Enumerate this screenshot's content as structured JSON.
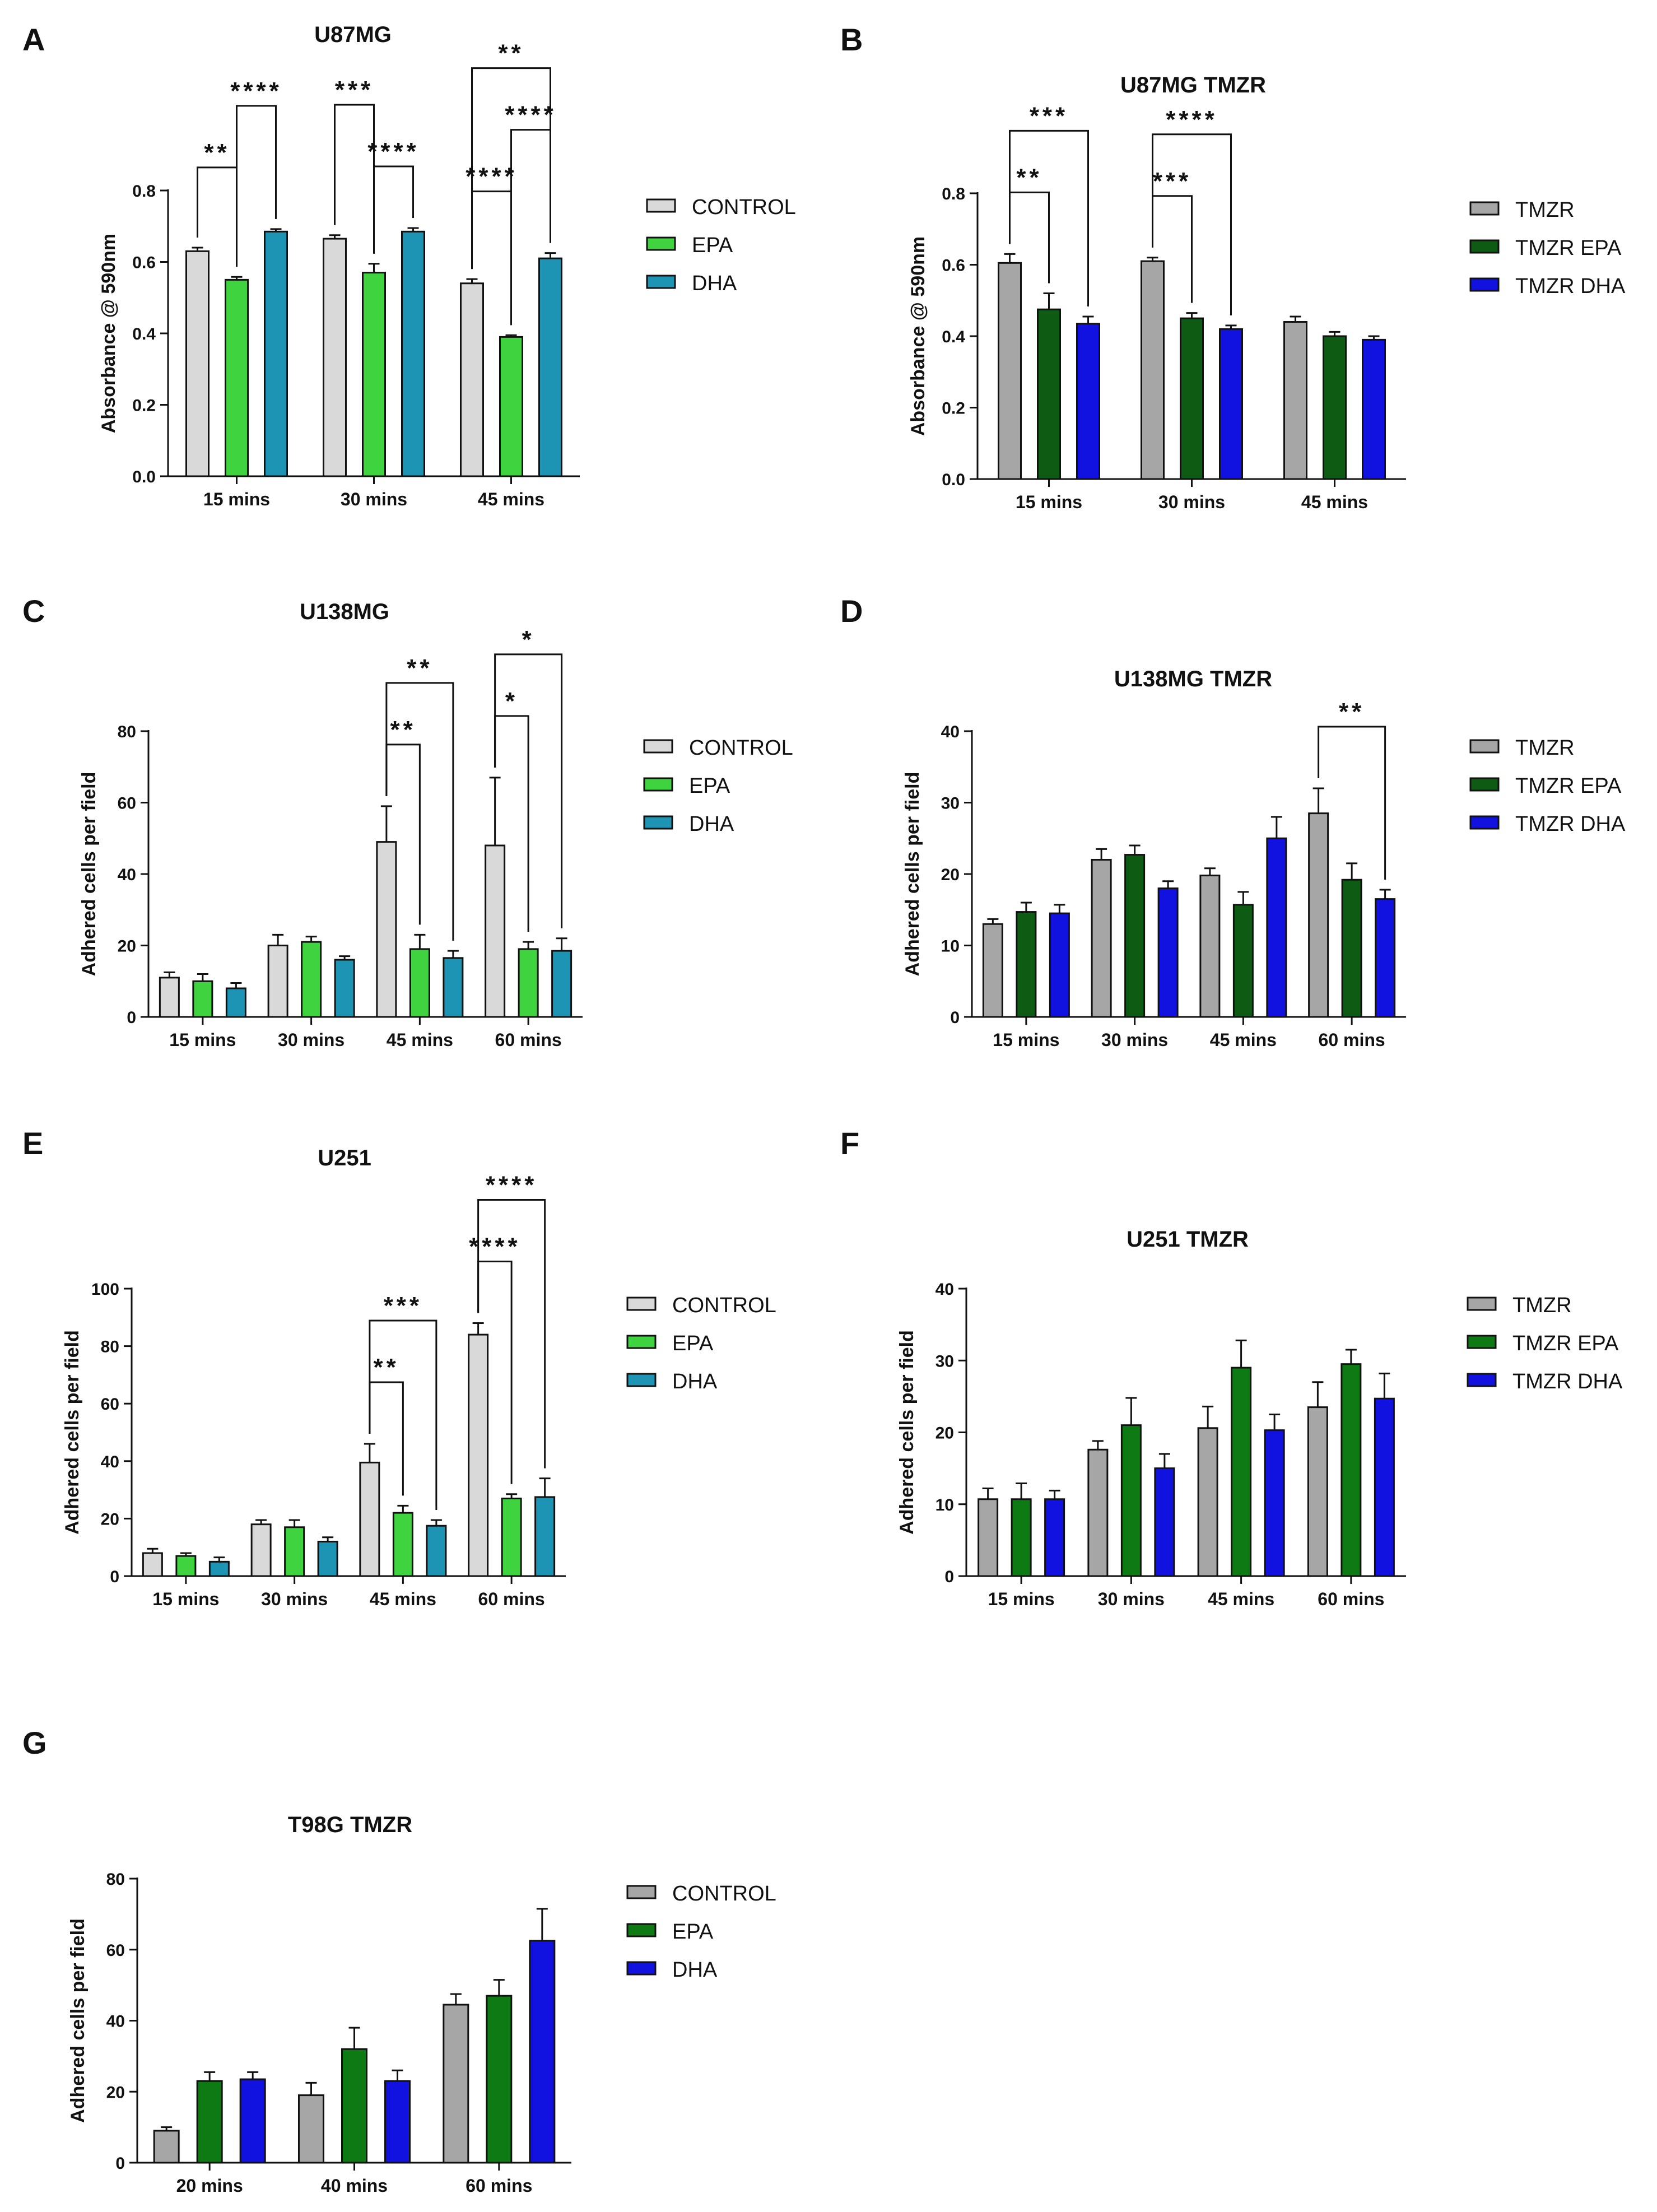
{
  "chart_data": [
    {
      "panel": "A",
      "type": "bar",
      "title": "U87MG",
      "ylabel": "Absorbance @ 590nm",
      "xlabel": "",
      "ylim": [
        0,
        0.8
      ],
      "yticks": [
        0.0,
        0.2,
        0.4,
        0.6,
        0.8
      ],
      "ytick_labels": [
        "0.0",
        "0.2",
        "0.4",
        "0.6",
        "0.8"
      ],
      "categories": [
        "15 mins",
        "30 mins",
        "45 mins"
      ],
      "series": [
        {
          "name": "CONTROL",
          "color": "#d9d9d9",
          "values": [
            0.63,
            0.665,
            0.54
          ],
          "errors": [
            0.01,
            0.01,
            0.012
          ]
        },
        {
          "name": "EPA",
          "color": "#3fd43f",
          "values": [
            0.55,
            0.57,
            0.39
          ],
          "errors": [
            0.008,
            0.025,
            0.005
          ]
        },
        {
          "name": "DHA",
          "color": "#1e94b5",
          "values": [
            0.685,
            0.685,
            0.61
          ],
          "errors": [
            0.007,
            0.01,
            0.015
          ]
        }
      ],
      "significance": [
        {
          "group": 0,
          "from": 0,
          "to": 1,
          "label": "**",
          "level": 0
        },
        {
          "group": 0,
          "from": 1,
          "to": 2,
          "label": "****",
          "level": 1
        },
        {
          "group": 1,
          "from": 0,
          "to": 1,
          "label": "***",
          "level": 1
        },
        {
          "group": 1,
          "from": 1,
          "to": 2,
          "label": "****",
          "level": 0
        },
        {
          "group": 2,
          "from": 0,
          "to": 1,
          "label": "****",
          "level": 0
        },
        {
          "group": 2,
          "from": 1,
          "to": 2,
          "label": "****",
          "level": 1
        },
        {
          "group": 2,
          "from": 0,
          "to": 2,
          "label": "**",
          "level": 2
        }
      ]
    },
    {
      "panel": "B",
      "type": "bar",
      "title": "U87MG TMZR",
      "ylabel": "Absorbance @ 590nm",
      "xlabel": "",
      "ylim": [
        0,
        0.8
      ],
      "yticks": [
        0.0,
        0.2,
        0.4,
        0.6,
        0.8
      ],
      "ytick_labels": [
        "0.0",
        "0.2",
        "0.4",
        "0.6",
        "0.8"
      ],
      "categories": [
        "15 mins",
        "30 mins",
        "45 mins"
      ],
      "series": [
        {
          "name": "TMZR",
          "color": "#a6a6a6",
          "values": [
            0.605,
            0.61,
            0.44
          ],
          "errors": [
            0.025,
            0.01,
            0.015
          ]
        },
        {
          "name": "TMZR EPA",
          "color": "#0e5c13",
          "values": [
            0.475,
            0.45,
            0.4
          ],
          "errors": [
            0.045,
            0.015,
            0.012
          ]
        },
        {
          "name": "TMZR DHA",
          "color": "#1212e0",
          "values": [
            0.435,
            0.42,
            0.39
          ],
          "errors": [
            0.02,
            0.01,
            0.01
          ]
        }
      ],
      "significance": [
        {
          "group": 0,
          "from": 0,
          "to": 1,
          "label": "**",
          "level": 0
        },
        {
          "group": 0,
          "from": 0,
          "to": 2,
          "label": "***",
          "level": 1
        },
        {
          "group": 1,
          "from": 0,
          "to": 1,
          "label": "***",
          "level": 0
        },
        {
          "group": 1,
          "from": 0,
          "to": 2,
          "label": "****",
          "level": 1
        }
      ]
    },
    {
      "panel": "C",
      "type": "bar",
      "title": "U138MG",
      "ylabel": "Adhered cells per field",
      "xlabel": "",
      "ylim": [
        0,
        80
      ],
      "yticks": [
        0,
        20,
        40,
        60,
        80
      ],
      "ytick_labels": [
        "0",
        "20",
        "40",
        "60",
        "80"
      ],
      "categories": [
        "15 mins",
        "30 mins",
        "45 mins",
        "60 mins"
      ],
      "series": [
        {
          "name": "CONTROL",
          "color": "#d9d9d9",
          "values": [
            11,
            20,
            49,
            48
          ],
          "errors": [
            1.5,
            3,
            10,
            19
          ]
        },
        {
          "name": "EPA",
          "color": "#3fd43f",
          "values": [
            10,
            21,
            19,
            19
          ],
          "errors": [
            2,
            1.5,
            4,
            2
          ]
        },
        {
          "name": "DHA",
          "color": "#1e94b5",
          "values": [
            8,
            16,
            16.5,
            18.5
          ],
          "errors": [
            1.5,
            1,
            2,
            3.5
          ]
        }
      ],
      "significance": [
        {
          "group": 2,
          "from": 0,
          "to": 1,
          "label": "**",
          "level": 0
        },
        {
          "group": 2,
          "from": 0,
          "to": 2,
          "label": "**",
          "level": 1
        },
        {
          "group": 3,
          "from": 0,
          "to": 1,
          "label": "*",
          "level": 0
        },
        {
          "group": 3,
          "from": 0,
          "to": 2,
          "label": "*",
          "level": 1
        }
      ]
    },
    {
      "panel": "D",
      "type": "bar",
      "title": "U138MG TMZR",
      "ylabel": "Adhered cells per field",
      "xlabel": "",
      "ylim": [
        0,
        40
      ],
      "yticks": [
        0,
        10,
        20,
        30,
        40
      ],
      "ytick_labels": [
        "0",
        "10",
        "20",
        "30",
        "40"
      ],
      "categories": [
        "15 mins",
        "30 mins",
        "45 mins",
        "60 mins"
      ],
      "series": [
        {
          "name": "TMZR",
          "color": "#a6a6a6",
          "values": [
            13,
            22,
            19.8,
            28.5
          ],
          "errors": [
            0.7,
            1.5,
            1,
            3.5
          ]
        },
        {
          "name": "TMZR EPA",
          "color": "#0e5c13",
          "values": [
            14.7,
            22.7,
            15.7,
            19.2
          ],
          "errors": [
            1.3,
            1.3,
            1.8,
            2.3
          ]
        },
        {
          "name": "TMZR DHA",
          "color": "#1212e0",
          "values": [
            14.5,
            18,
            25,
            16.5
          ],
          "errors": [
            1.2,
            1,
            3,
            1.3
          ]
        }
      ],
      "significance": [
        {
          "group": 3,
          "from": 0,
          "to": 2,
          "label": "**",
          "level": 0
        }
      ]
    },
    {
      "panel": "E",
      "type": "bar",
      "title": "U251",
      "ylabel": "Adhered cells per field",
      "xlabel": "",
      "ylim": [
        0,
        100
      ],
      "yticks": [
        0,
        20,
        40,
        60,
        80,
        100
      ],
      "ytick_labels": [
        "0",
        "20",
        "40",
        "60",
        "80",
        "100"
      ],
      "categories": [
        "15 mins",
        "30 mins",
        "45 mins",
        "60 mins"
      ],
      "series": [
        {
          "name": "CONTROL",
          "color": "#d9d9d9",
          "values": [
            8,
            18,
            39.5,
            84
          ],
          "errors": [
            1.5,
            1.5,
            6.5,
            4
          ]
        },
        {
          "name": "EPA",
          "color": "#3fd43f",
          "values": [
            7,
            17,
            22,
            27
          ],
          "errors": [
            1,
            2.5,
            2.5,
            1.5
          ]
        },
        {
          "name": "DHA",
          "color": "#1e94b5",
          "values": [
            5,
            12,
            17.5,
            27.5
          ],
          "errors": [
            1.5,
            1.5,
            2,
            6.5
          ]
        }
      ],
      "significance": [
        {
          "group": 2,
          "from": 0,
          "to": 1,
          "label": "**",
          "level": 0
        },
        {
          "group": 2,
          "from": 0,
          "to": 2,
          "label": "***",
          "level": 1
        },
        {
          "group": 3,
          "from": 0,
          "to": 1,
          "label": "****",
          "level": 0
        },
        {
          "group": 3,
          "from": 0,
          "to": 2,
          "label": "****",
          "level": 1
        }
      ]
    },
    {
      "panel": "F",
      "type": "bar",
      "title": "U251 TMZR",
      "ylabel": "Adhered cells per field",
      "xlabel": "",
      "ylim": [
        0,
        40
      ],
      "yticks": [
        0,
        10,
        20,
        30,
        40
      ],
      "ytick_labels": [
        "0",
        "10",
        "20",
        "30",
        "40"
      ],
      "categories": [
        "15 mins",
        "30 mins",
        "45 mins",
        "60 mins"
      ],
      "series": [
        {
          "name": "TMZR",
          "color": "#a6a6a6",
          "values": [
            10.7,
            17.6,
            20.6,
            23.5
          ],
          "errors": [
            1.5,
            1.2,
            3,
            3.5
          ]
        },
        {
          "name": "TMZR EPA",
          "color": "#0e7a13",
          "values": [
            10.7,
            21,
            29,
            29.5
          ],
          "errors": [
            2.2,
            3.8,
            3.8,
            2
          ]
        },
        {
          "name": "TMZR DHA",
          "color": "#1212e0",
          "values": [
            10.7,
            15,
            20.3,
            24.7
          ],
          "errors": [
            1.2,
            2,
            2.2,
            3.5
          ]
        }
      ],
      "significance": []
    },
    {
      "panel": "G",
      "type": "bar",
      "title": "T98G TMZR",
      "ylabel": "Adhered cells per field",
      "xlabel": "",
      "ylim": [
        0,
        80
      ],
      "yticks": [
        0,
        20,
        40,
        60,
        80
      ],
      "ytick_labels": [
        "0",
        "20",
        "40",
        "60",
        "80"
      ],
      "categories": [
        "20 mins",
        "40 mins",
        "60 mins"
      ],
      "series": [
        {
          "name": "CONTROL",
          "color": "#a6a6a6",
          "values": [
            9,
            19,
            44.5
          ],
          "errors": [
            1,
            3.5,
            3
          ]
        },
        {
          "name": "EPA",
          "color": "#0e7a13",
          "values": [
            23,
            32,
            47
          ],
          "errors": [
            2.5,
            6,
            4.5
          ]
        },
        {
          "name": "DHA",
          "color": "#1212e0",
          "values": [
            23.5,
            23,
            62.5
          ],
          "errors": [
            2,
            3,
            9
          ]
        }
      ],
      "significance": []
    }
  ]
}
